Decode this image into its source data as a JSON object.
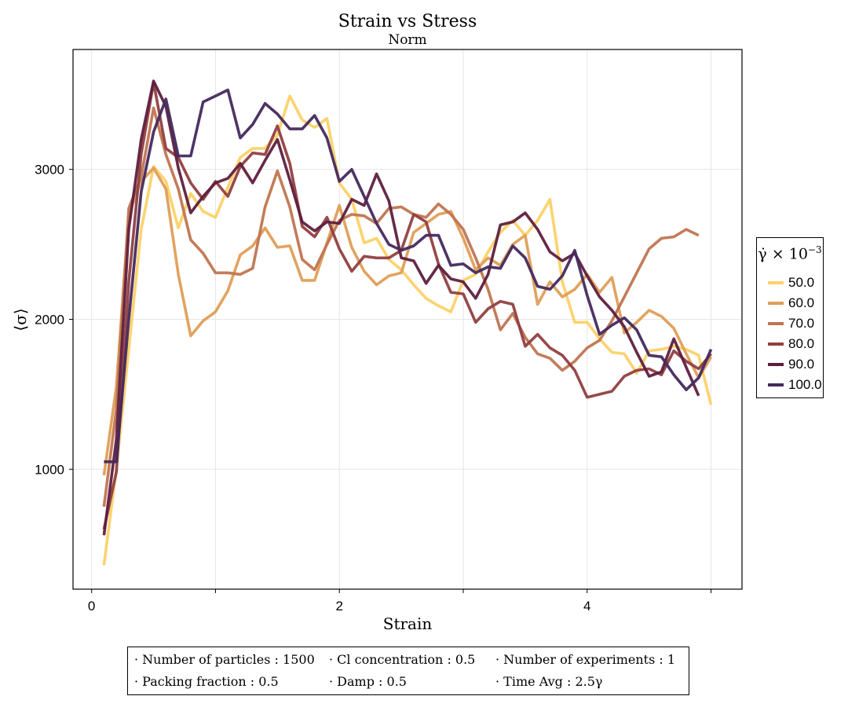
{
  "chart_data": {
    "type": "line",
    "title": "Strain vs Stress",
    "subtitle": "Norm",
    "xlabel": "Strain",
    "ylabel": "⟨σ⟩",
    "xlim": [
      -0.15,
      5.25
    ],
    "ylim": [
      200,
      3800
    ],
    "xticks": [
      0,
      2,
      4
    ],
    "xtick_labels": [
      "0",
      "2",
      "4"
    ],
    "yticks": [
      1000,
      2000,
      3000
    ],
    "ytick_labels": [
      "1000",
      "2000",
      "3000"
    ],
    "grid": true,
    "legend": {
      "title": "γ̇ × 10",
      "title_exponent": "−3",
      "placement": "right"
    },
    "x": [
      0.1,
      0.2,
      0.3,
      0.4,
      0.5,
      0.6,
      0.7,
      0.8,
      0.9,
      1.0,
      1.1,
      1.2,
      1.3,
      1.4,
      1.5,
      1.6,
      1.7,
      1.8,
      1.9,
      2.0,
      2.1,
      2.2,
      2.3,
      2.4,
      2.5,
      2.6,
      2.7,
      2.8,
      2.9,
      3.0,
      3.1,
      3.2,
      3.3,
      3.4,
      3.5,
      3.6,
      3.7,
      3.8,
      3.9,
      4.0,
      4.1,
      4.2,
      4.3,
      4.4,
      4.5,
      4.6,
      4.7,
      4.8,
      4.9,
      5.0
    ],
    "series": [
      {
        "name": "50.0",
        "color": "#fcd167",
        "values": [
          360,
          1000,
          1800,
          2600,
          3020,
          2920,
          2610,
          2840,
          2720,
          2680,
          2880,
          3080,
          3140,
          3140,
          3230,
          3490,
          3330,
          3280,
          3340,
          2910,
          2800,
          2510,
          2540,
          2400,
          2330,
          2230,
          2140,
          2090,
          2050,
          2260,
          2300,
          2450,
          2580,
          2660,
          2560,
          2660,
          2800,
          2250,
          1980,
          1980,
          1870,
          1780,
          1770,
          1640,
          1790,
          1800,
          1820,
          1800,
          1760,
          1430
        ]
      },
      {
        "name": "60.0",
        "color": "#df9e57",
        "values": [
          960,
          1550,
          2700,
          2920,
          3010,
          2870,
          2300,
          1890,
          1990,
          2050,
          2190,
          2430,
          2490,
          2610,
          2480,
          2490,
          2260,
          2260,
          2510,
          2760,
          2480,
          2320,
          2230,
          2290,
          2310,
          2580,
          2640,
          2700,
          2720,
          2540,
          2330,
          2410,
          2360,
          2500,
          2560,
          2100,
          2250,
          2150,
          2200,
          2300,
          2180,
          2280,
          1910,
          1980,
          2060,
          2020,
          1940,
          1770,
          1610,
          1750
        ]
      },
      {
        "name": "70.0",
        "color": "#c07550",
        "values": [
          750,
          1400,
          2740,
          2950,
          3410,
          3100,
          2870,
          2530,
          2440,
          2310,
          2310,
          2300,
          2340,
          2750,
          2990,
          2750,
          2400,
          2330,
          2500,
          2660,
          2700,
          2690,
          2640,
          2740,
          2750,
          2700,
          2680,
          2770,
          2700,
          2600,
          2410,
          2200,
          1930,
          2040,
          1880,
          1770,
          1740,
          1660,
          1720,
          1810,
          1860,
          1990,
          2150,
          2310,
          2470,
          2540,
          2550,
          2600,
          2560,
          null
        ]
      },
      {
        "name": "80.0",
        "color": "#913f40",
        "values": [
          600,
          980,
          2250,
          3100,
          3580,
          3140,
          3080,
          2910,
          2800,
          2920,
          2820,
          3020,
          3110,
          3100,
          3290,
          3040,
          2620,
          2550,
          2680,
          2470,
          2320,
          2420,
          2410,
          2410,
          2460,
          2700,
          2650,
          2370,
          2180,
          2170,
          1980,
          2070,
          2120,
          2100,
          1820,
          1900,
          1810,
          1760,
          1660,
          1480,
          1500,
          1520,
          1620,
          1660,
          1670,
          1630,
          1790,
          1720,
          1670,
          1770
        ]
      },
      {
        "name": "90.0",
        "color": "#5e1f3e",
        "values": [
          560,
          1200,
          2600,
          3200,
          3590,
          3420,
          3010,
          2710,
          2820,
          2910,
          2940,
          3040,
          2910,
          3060,
          3200,
          2930,
          2650,
          2590,
          2650,
          2640,
          2800,
          2760,
          2970,
          2790,
          2410,
          2390,
          2240,
          2360,
          2270,
          2250,
          2140,
          2300,
          2630,
          2650,
          2710,
          2600,
          2450,
          2390,
          2440,
          2290,
          2150,
          2060,
          1950,
          1780,
          1620,
          1650,
          1870,
          1680,
          1490,
          null
        ]
      },
      {
        "name": "100.0",
        "color": "#44295d",
        "values": [
          1050,
          1050,
          2000,
          2850,
          3250,
          3470,
          3090,
          3090,
          3450,
          3490,
          3530,
          3210,
          3300,
          3440,
          3370,
          3270,
          3270,
          3360,
          3210,
          2920,
          3000,
          2820,
          2640,
          2500,
          2460,
          2490,
          2560,
          2560,
          2360,
          2370,
          2310,
          2350,
          2340,
          2490,
          2410,
          2220,
          2200,
          2290,
          2460,
          2160,
          1900,
          1960,
          2010,
          1930,
          1760,
          1750,
          1630,
          1530,
          1610,
          1800
        ]
      }
    ]
  },
  "info": {
    "items": [
      "· Number of particles : 1500",
      "· Cl concentration : 0.5",
      "· Number of experiments : 1",
      "· Packing fraction : 0.5",
      "· Damp : 0.5",
      "· Time Avg : 2.5γ"
    ]
  }
}
